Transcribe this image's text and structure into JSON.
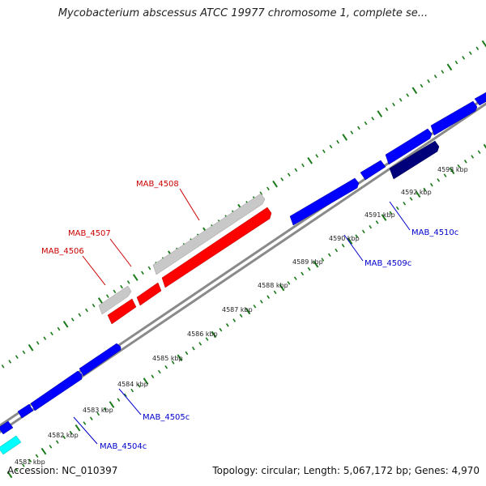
{
  "title": "Mycobacterium abscessus ATCC 19977 chromosome 1, complete se...",
  "footer": {
    "accession": "Accession: NC_010397",
    "summary": "Topology: circular; Length: 5,067,172 bp; Genes: 4,970"
  },
  "colors": {
    "backbone": "#8a8a8a",
    "tick": "#1a7a1a",
    "highlight_gene": "#ff0000",
    "highlight_label": "#cc0000",
    "gene_blue": "#0000ff",
    "gene_navy": "#00007a",
    "gene_gray": "#c8c8c8",
    "gene_cyan": "#00ffff",
    "label_blue": "#0000cc"
  },
  "scale_labels": [
    "4581 kbp",
    "4582 kbp",
    "4583 kbp",
    "4584 kbp",
    "4585 kbp",
    "4586 kbp",
    "4587 kbp",
    "4588 kbp",
    "4589 kbp",
    "4590 kbp",
    "4591 kbp",
    "4592 kbp",
    "4593 kbp"
  ],
  "genes": [
    {
      "name": "gene-cyan-bottom",
      "color": "cyan",
      "strand": "reverse"
    },
    {
      "name": "gene-blue-1",
      "color": "blue",
      "strand": "reverse"
    },
    {
      "name": "gene-blue-2",
      "color": "blue",
      "strand": "reverse"
    },
    {
      "name": "gene-blue-3",
      "color": "blue",
      "strand": "forward"
    },
    {
      "name": "gene-blue-4",
      "color": "blue",
      "strand": "forward"
    },
    {
      "name": "gene-red-1",
      "color": "red",
      "strand": "forward"
    },
    {
      "name": "gene-red-2",
      "color": "red",
      "strand": "forward"
    },
    {
      "name": "gene-red-3",
      "color": "red",
      "strand": "forward"
    },
    {
      "name": "gene-gray-1",
      "color": "gray",
      "strand": "reverse"
    },
    {
      "name": "gene-gray-2",
      "color": "gray",
      "strand": "forward"
    },
    {
      "name": "gene-blue-5",
      "color": "blue",
      "strand": "forward"
    },
    {
      "name": "gene-blue-6",
      "color": "blue",
      "strand": "reverse"
    },
    {
      "name": "gene-blue-7",
      "color": "blue",
      "strand": "forward"
    },
    {
      "name": "gene-blue-8",
      "color": "blue",
      "strand": "forward"
    },
    {
      "name": "gene-navy",
      "color": "navy",
      "strand": "forward"
    },
    {
      "name": "gene-blue-9",
      "color": "blue",
      "strand": "forward"
    }
  ],
  "gene_labels": {
    "mab4504c": "MAB_4504c",
    "mab4505c": "MAB_4505c",
    "mab4506": "MAB_4506",
    "mab4507": "MAB_4507",
    "mab4508": "MAB_4508",
    "mab4509c": "MAB_4509c",
    "mab4510c": "MAB_4510c"
  }
}
